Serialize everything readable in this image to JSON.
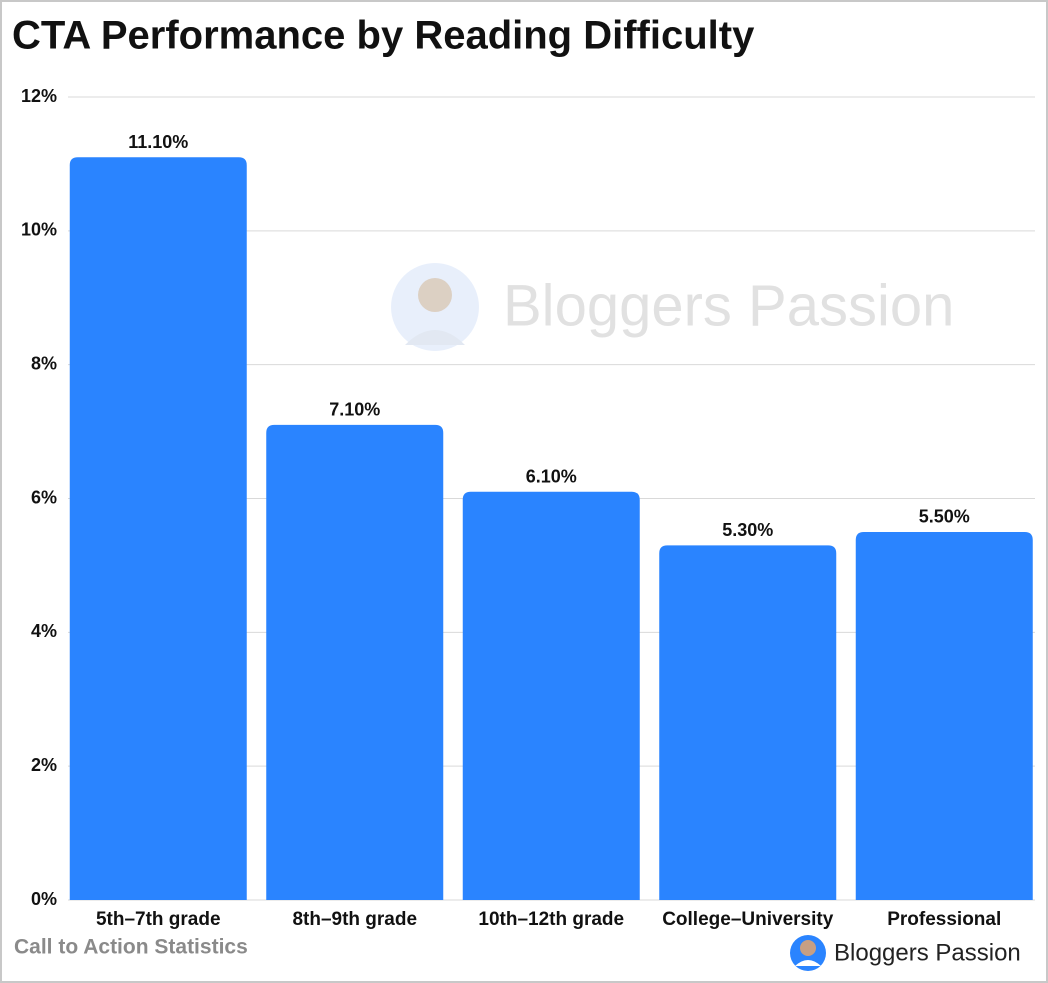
{
  "chart_data": {
    "type": "bar",
    "title": "CTA Performance by Reading Difficulty",
    "categories": [
      "5th–7th grade",
      "8th–9th grade",
      "10th–12th grade",
      "College–University",
      "Professional"
    ],
    "values": [
      11.1,
      7.1,
      6.1,
      5.3,
      5.5
    ],
    "value_labels": [
      "11.10%",
      "7.10%",
      "6.10%",
      "5.30%",
      "5.50%"
    ],
    "color": "#2a84ff",
    "ylim": [
      0,
      12
    ],
    "yticks": [
      {
        "value": 0,
        "label": "0%"
      },
      {
        "value": 2,
        "label": "2%"
      },
      {
        "value": 4,
        "label": "4%"
      },
      {
        "value": 6,
        "label": "6%"
      },
      {
        "value": 8,
        "label": "8%"
      },
      {
        "value": 10,
        "label": "10%"
      },
      {
        "value": 12,
        "label": "12%"
      }
    ],
    "grid": true,
    "source": "Call to Action Statistics",
    "watermark": "Bloggers Passion",
    "brand": "Bloggers Passion"
  }
}
